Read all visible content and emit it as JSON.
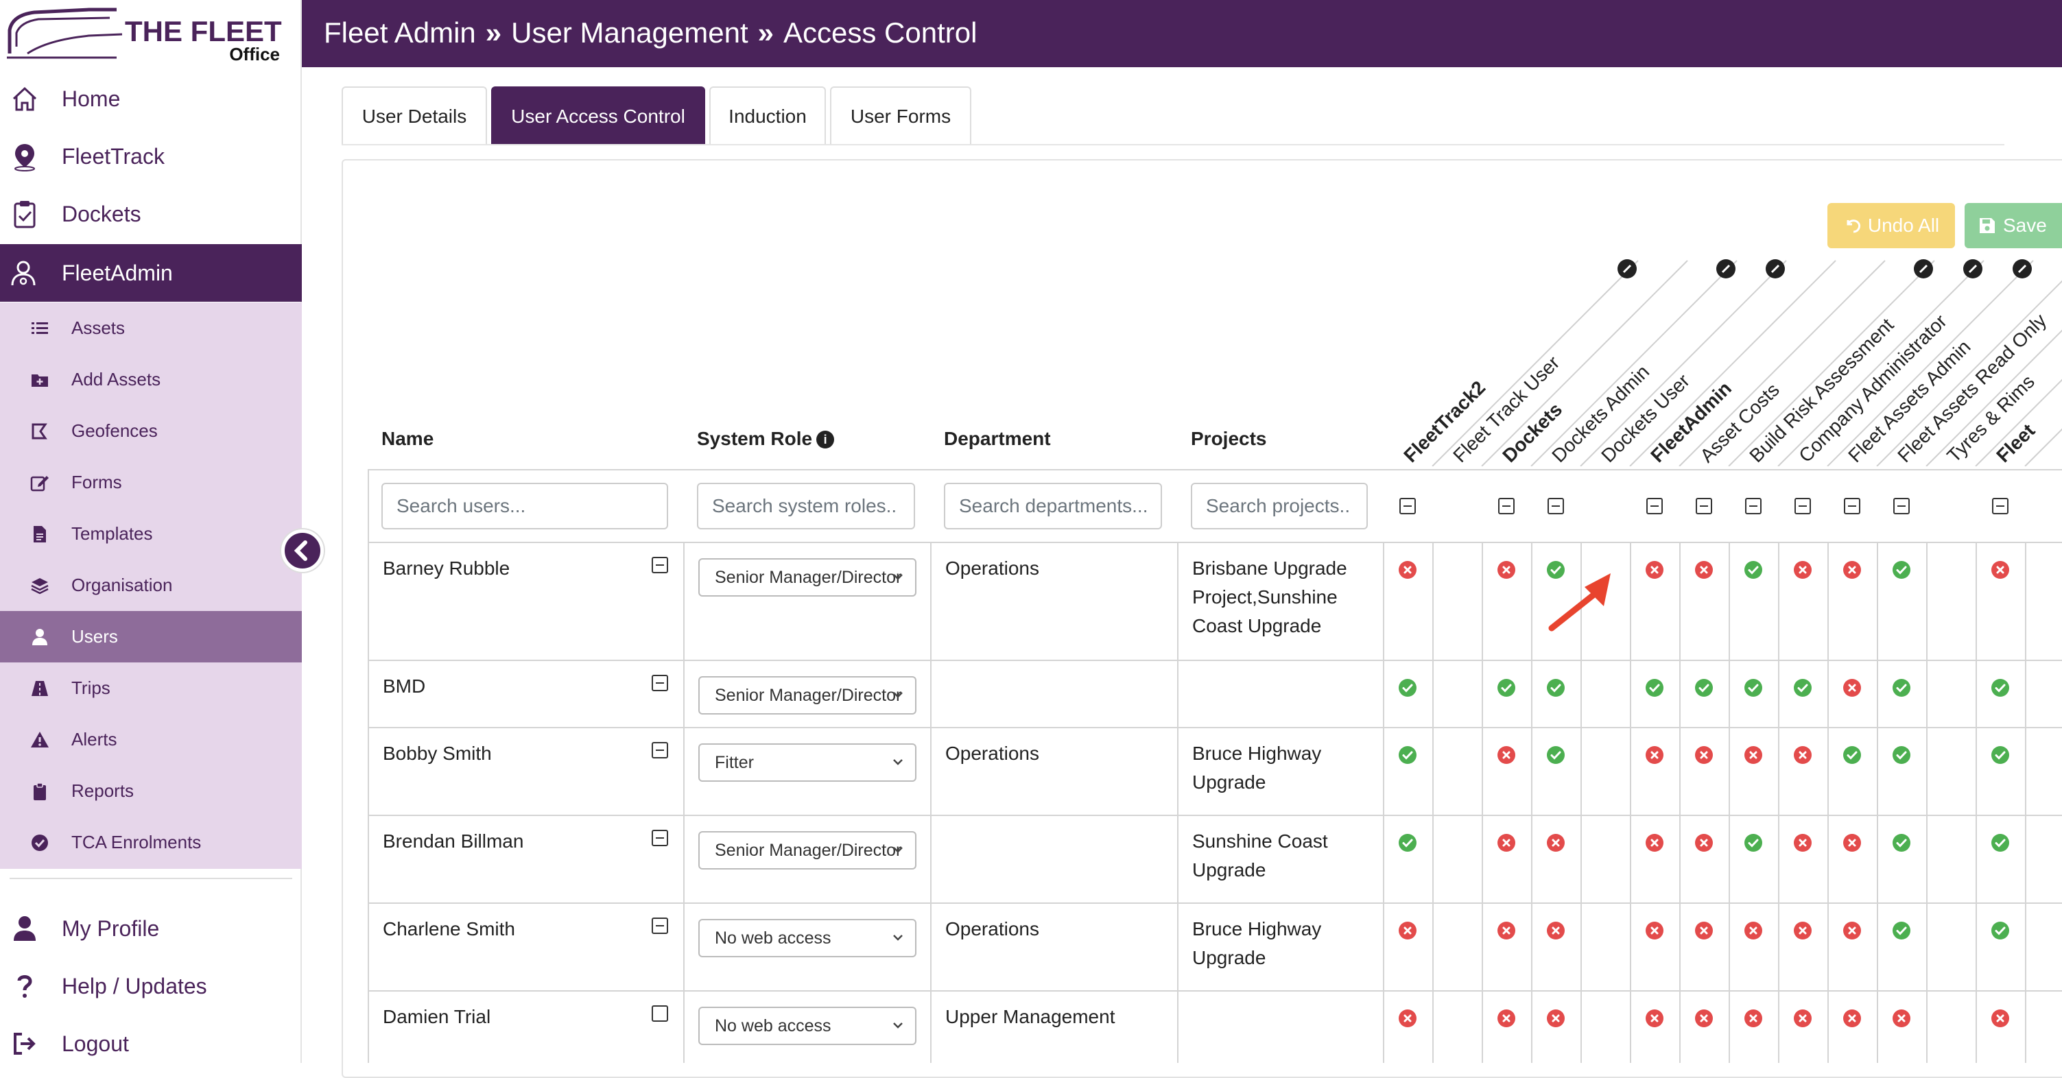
{
  "brand": {
    "title": "THE FLEET",
    "subtitle": "Office",
    "primary_color": "#4a235a"
  },
  "nav": {
    "main": [
      {
        "label": "Home",
        "icon": "home-icon"
      },
      {
        "label": "FleetTrack",
        "icon": "map-pin-icon"
      },
      {
        "label": "Dockets",
        "icon": "clipboard-check-icon"
      },
      {
        "label": "FleetAdmin",
        "icon": "user-gear-icon",
        "active": true
      }
    ],
    "sub": [
      {
        "label": "Assets",
        "icon": "list-icon"
      },
      {
        "label": "Add Assets",
        "icon": "folder-plus-icon"
      },
      {
        "label": "Geofences",
        "icon": "geofence-icon"
      },
      {
        "label": "Forms",
        "icon": "edit-icon"
      },
      {
        "label": "Templates",
        "icon": "file-icon"
      },
      {
        "label": "Organisation",
        "icon": "layers-icon"
      },
      {
        "label": "Users",
        "icon": "user-icon",
        "active": true
      },
      {
        "label": "Trips",
        "icon": "road-icon"
      },
      {
        "label": "Alerts",
        "icon": "warning-icon"
      },
      {
        "label": "Reports",
        "icon": "clipboard-icon"
      },
      {
        "label": "TCA Enrolments",
        "icon": "check-circle-icon"
      }
    ],
    "bottom": [
      {
        "label": "My Profile",
        "icon": "user-icon"
      },
      {
        "label": "Help / Updates",
        "icon": "question-icon"
      },
      {
        "label": "Logout",
        "icon": "logout-icon"
      }
    ]
  },
  "header": {
    "crumb1": "Fleet Admin",
    "crumb2": "User Management",
    "crumb3": "Access Control",
    "separator": "»"
  },
  "tabs": [
    "User Details",
    "User Access Control",
    "Induction",
    "User Forms"
  ],
  "actions": {
    "undo": "Undo All",
    "save": "Save"
  },
  "columns": {
    "name": "Name",
    "role": "System Role",
    "department": "Department",
    "projects": "Projects"
  },
  "search": {
    "users": "Search users...",
    "roles": "Search system roles..",
    "departments": "Search departments...",
    "projects": "Search projects.."
  },
  "permission_columns": [
    {
      "label": "FleetTrack2",
      "group": true
    },
    {
      "label": "Fleet Track User",
      "group": false
    },
    {
      "label": "Dockets",
      "group": true
    },
    {
      "label": "Dockets Admin",
      "group": false
    },
    {
      "label": "Dockets User",
      "group": false
    },
    {
      "label": "FleetAdmin",
      "group": true
    },
    {
      "label": "Asset Costs",
      "group": false
    },
    {
      "label": "Build Risk Assessment",
      "group": false
    },
    {
      "label": "Company Administrator",
      "group": false
    },
    {
      "label": "Fleet Assets Admin",
      "group": false
    },
    {
      "label": "Fleet Assets Read Only",
      "group": false
    },
    {
      "label": "Tyres & Rims",
      "group": false
    },
    {
      "label": "Fleet",
      "group": true
    }
  ],
  "users": [
    {
      "name": "Barney Rubble",
      "role": "Senior Manager/Director",
      "department": "Operations",
      "projects": [
        "Brisbane Upgrade",
        "Project,Sunshine",
        "Coast Upgrade"
      ],
      "checked": false,
      "perms": {
        "c1": "no",
        "c3": "no",
        "c4": "yes",
        "c6": "no",
        "c7": "no",
        "c8": "yes",
        "c9": "no",
        "c10": "no",
        "c11": "yes",
        "c13": "no"
      }
    },
    {
      "name": "BMD",
      "role": "Senior Manager/Director",
      "department": "",
      "projects": [],
      "checked": false,
      "perms": {
        "c1": "yes",
        "c3": "yes",
        "c4": "yes",
        "c6": "yes",
        "c7": "yes",
        "c8": "yes",
        "c9": "yes",
        "c10": "no",
        "c11": "yes",
        "c13": "yes"
      }
    },
    {
      "name": "Bobby Smith",
      "role": "Fitter",
      "department": "Operations",
      "projects": [
        "Bruce Highway",
        "Upgrade"
      ],
      "checked": false,
      "perms": {
        "c1": "yes",
        "c3": "no",
        "c4": "yes",
        "c6": "no",
        "c7": "no",
        "c8": "no",
        "c9": "no",
        "c10": "yes",
        "c11": "yes",
        "c13": "yes"
      }
    },
    {
      "name": "Brendan Billman",
      "role": "Senior Manager/Director",
      "department": "",
      "projects": [
        "Sunshine Coast",
        "Upgrade"
      ],
      "checked": false,
      "perms": {
        "c1": "yes",
        "c3": "no",
        "c4": "no",
        "c6": "no",
        "c7": "no",
        "c8": "yes",
        "c9": "no",
        "c10": "no",
        "c11": "yes",
        "c13": "yes"
      }
    },
    {
      "name": "Charlene Smith",
      "role": "No web access",
      "department": "Operations",
      "projects": [
        "Bruce Highway",
        "Upgrade"
      ],
      "checked": false,
      "perms": {
        "c1": "no",
        "c3": "no",
        "c4": "no",
        "c6": "no",
        "c7": "no",
        "c8": "no",
        "c9": "no",
        "c10": "no",
        "c11": "yes",
        "c13": "yes"
      }
    },
    {
      "name": "Damien Trial",
      "role": "No web access",
      "department": "Upper Management",
      "projects": [],
      "checked": true,
      "perms": {
        "c1": "no",
        "c3": "no",
        "c4": "no",
        "c6": "no",
        "c7": "no",
        "c8": "no",
        "c9": "no",
        "c10": "no",
        "c11": "no",
        "c13": "no"
      }
    }
  ],
  "colors": {
    "yes": "#4caf50",
    "no": "#e34b4b",
    "undo": "#f6d77a",
    "save": "#8fd09b"
  }
}
